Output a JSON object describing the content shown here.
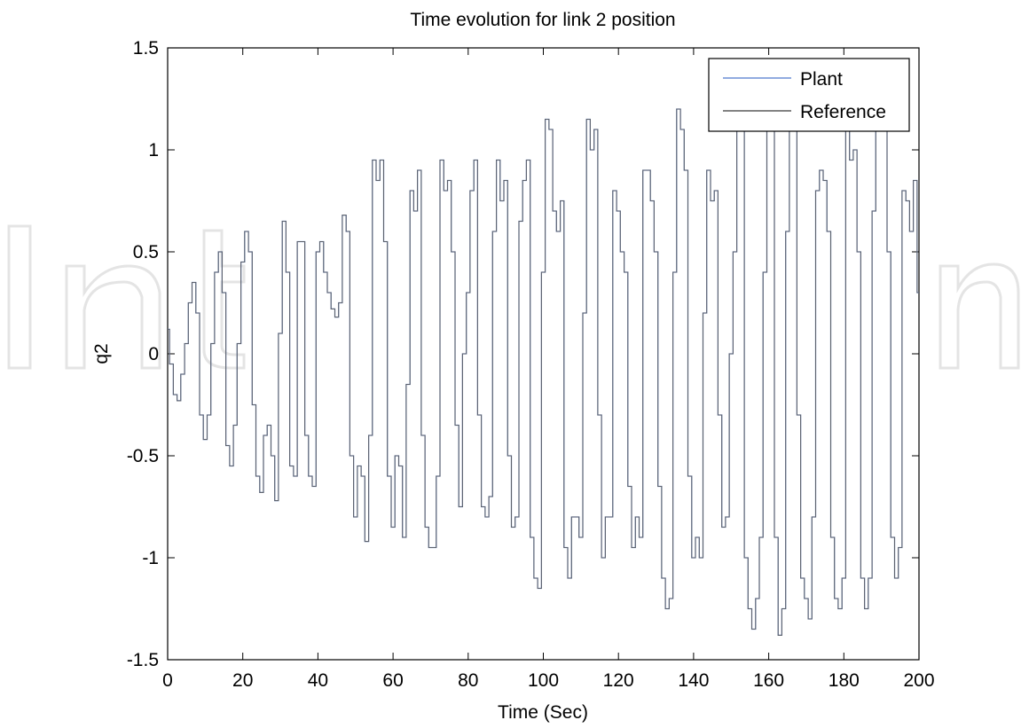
{
  "chart_data": {
    "type": "line",
    "title": "Time evolution for link 2 position",
    "xlabel": "Time (Sec)",
    "ylabel": "q2",
    "xlim": [
      0,
      200
    ],
    "ylim": [
      -1.5,
      1.5
    ],
    "xticks": [
      "0",
      "20",
      "40",
      "60",
      "80",
      "100",
      "120",
      "140",
      "160",
      "180",
      "200"
    ],
    "yticks": [
      "1.5",
      "1",
      "0.5",
      "0",
      "-0.5",
      "-1",
      "-1.5"
    ],
    "grid": false,
    "legend_position": "top-right",
    "series": [
      {
        "name": "Plant",
        "color": "#6d8fd6"
      },
      {
        "name": "Reference",
        "color": "#5a5a5a"
      }
    ],
    "x": [
      0,
      1,
      2,
      3,
      4,
      5,
      6,
      7,
      8,
      9,
      10,
      11,
      12,
      13,
      14,
      15,
      16,
      17,
      18,
      19,
      20,
      21,
      22,
      23,
      24,
      25,
      26,
      27,
      28,
      29,
      30,
      31,
      32,
      33,
      34,
      35,
      36,
      37,
      38,
      39,
      40,
      41,
      42,
      43,
      44,
      45,
      46,
      47,
      48,
      49,
      50,
      51,
      52,
      53,
      54,
      55,
      56,
      57,
      58,
      59,
      60,
      61,
      62,
      63,
      64,
      65,
      66,
      67,
      68,
      69,
      70,
      71,
      72,
      73,
      74,
      75,
      76,
      77,
      78,
      79,
      80,
      81,
      82,
      83,
      84,
      85,
      86,
      87,
      88,
      89,
      90,
      91,
      92,
      93,
      94,
      95,
      96,
      97,
      98,
      99,
      100,
      101,
      102,
      103,
      104,
      105,
      106,
      107,
      108,
      109,
      110,
      111,
      112,
      113,
      114,
      115,
      116,
      117,
      118,
      119,
      120,
      121,
      122,
      123,
      124,
      125,
      126,
      127,
      128,
      129,
      130,
      131,
      132,
      133,
      134,
      135,
      136,
      137,
      138,
      139,
      140,
      141,
      142,
      143,
      144,
      145,
      146,
      147,
      148,
      149,
      150,
      151,
      152,
      153,
      154,
      155,
      156,
      157,
      158,
      159,
      160,
      161,
      162,
      163,
      164,
      165,
      166,
      167,
      168,
      169,
      170,
      171,
      172,
      173,
      174,
      175,
      176,
      177,
      178,
      179,
      180,
      181,
      182,
      183,
      184,
      185,
      186,
      187,
      188,
      189,
      190,
      191,
      192,
      193,
      194,
      195,
      196,
      197,
      198,
      199,
      200
    ],
    "values": [
      0.12,
      -0.05,
      -0.2,
      -0.23,
      -0.1,
      0.05,
      0.25,
      0.35,
      0.2,
      -0.3,
      -0.42,
      -0.3,
      0.05,
      0.4,
      0.5,
      0.3,
      -0.45,
      -0.55,
      -0.35,
      0.05,
      0.45,
      0.6,
      0.5,
      -0.25,
      -0.6,
      -0.68,
      -0.4,
      -0.35,
      -0.5,
      -0.72,
      0.1,
      0.65,
      0.4,
      -0.55,
      -0.6,
      0.55,
      0.55,
      -0.4,
      -0.6,
      -0.65,
      0.5,
      0.55,
      0.4,
      0.3,
      0.22,
      0.18,
      0.25,
      0.68,
      0.6,
      -0.5,
      -0.8,
      -0.55,
      -0.6,
      -0.92,
      -0.4,
      0.95,
      0.85,
      0.95,
      0.55,
      -0.6,
      -0.85,
      -0.5,
      -0.55,
      -0.9,
      -0.15,
      0.8,
      0.7,
      0.9,
      -0.4,
      -0.85,
      -0.95,
      -0.95,
      -0.6,
      0.95,
      0.8,
      0.85,
      0.5,
      -0.35,
      -0.75,
      0.0,
      0.3,
      0.8,
      0.95,
      -0.3,
      -0.75,
      -0.8,
      -0.7,
      0.6,
      0.95,
      0.75,
      0.85,
      -0.5,
      -0.85,
      -0.8,
      0.65,
      0.85,
      0.95,
      -0.9,
      -1.1,
      -1.15,
      0.4,
      1.15,
      1.1,
      0.7,
      0.6,
      0.75,
      -0.95,
      -1.1,
      -0.8,
      -0.8,
      -0.9,
      0.2,
      1.15,
      1.0,
      1.1,
      -0.3,
      -1.0,
      -0.8,
      -0.8,
      0.8,
      0.7,
      0.5,
      0.4,
      -0.65,
      -0.95,
      -0.8,
      -0.9,
      0.9,
      0.9,
      0.75,
      0.5,
      -0.65,
      -1.1,
      -1.25,
      -1.2,
      0.4,
      1.2,
      1.1,
      0.9,
      -0.6,
      -1.0,
      -0.9,
      -1.0,
      0.2,
      0.9,
      0.75,
      0.8,
      -0.3,
      -0.85,
      -0.8,
      0.0,
      0.5,
      1.1,
      1.15,
      -1.0,
      -1.25,
      -1.35,
      -1.2,
      -0.9,
      0.4,
      1.1,
      1.15,
      -0.9,
      -1.38,
      -1.25,
      0.6,
      1.2,
      1.1,
      -0.3,
      -1.1,
      -1.2,
      -1.3,
      -0.8,
      0.8,
      0.9,
      0.85,
      0.6,
      -0.9,
      -1.2,
      -1.25,
      -1.1,
      1.1,
      0.95,
      1.0,
      0.5,
      -1.1,
      -1.25,
      -1.1,
      0.7,
      1.1,
      1.1,
      1.15,
      0.5,
      -0.9,
      -1.1,
      -0.95,
      0.8,
      0.75,
      0.6,
      0.85,
      0.3
    ]
  },
  "watermark": {
    "shape": "IntechOpen-logo"
  }
}
